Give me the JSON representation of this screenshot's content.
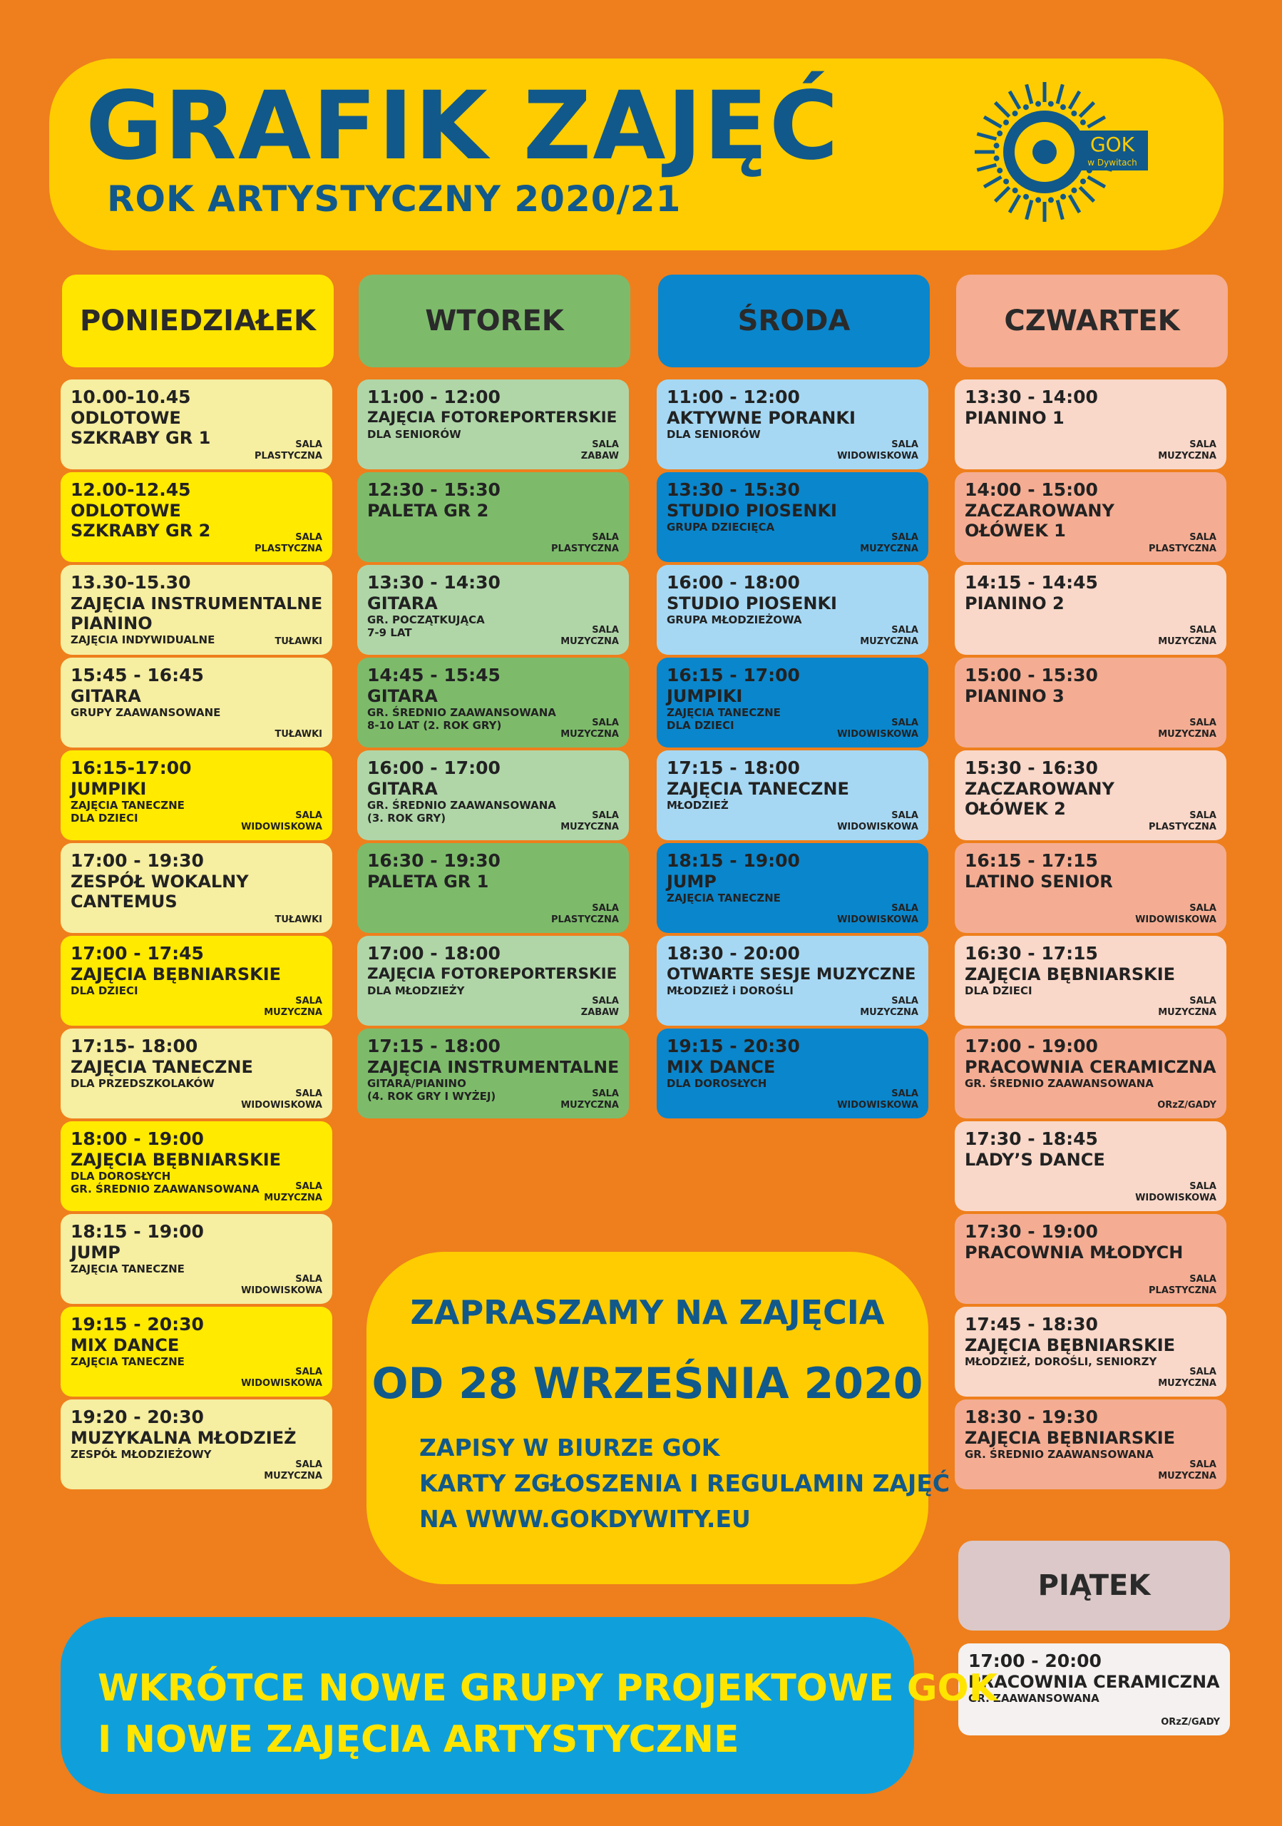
{
  "header": {
    "title": "GRAFIK ZAJĘĆ",
    "subtitle": "ROK ARTYSTYCZNY 2020/21"
  },
  "logo": {
    "name": "GOK",
    "place": "w Dywitach"
  },
  "colors": {
    "background": "#ee7f1c",
    "banner": "#fecc00",
    "title": "#11598a",
    "bottom_box": "#0fa0dc",
    "bottom_text": "#ffe500"
  },
  "days": [
    {
      "name": "PONIEDZIAŁEK",
      "header_color": "#ffe500",
      "light": "#f6eea0",
      "dark": "#ffea00",
      "cards": [
        {
          "shade": "light",
          "time": "10.00-10.45",
          "title": [
            "ODLOTOWE",
            "SZKRABY GR 1"
          ],
          "sub": [],
          "room": [
            "SALA",
            "PLASTYCZNA"
          ]
        },
        {
          "shade": "dark",
          "time": "12.00-12.45",
          "title": [
            "ODLOTOWE",
            "SZKRABY GR 2"
          ],
          "sub": [],
          "room": [
            "SALA",
            "PLASTYCZNA"
          ]
        },
        {
          "shade": "light",
          "time": "13.30-15.30",
          "title": [
            "ZAJĘCIA INSTRUMENTALNE",
            "PIANINO"
          ],
          "sub": [
            "ZAJĘCIA INDYWIDUALNE"
          ],
          "room": [
            "TUŁAWKI"
          ]
        },
        {
          "shade": "light",
          "time": "15:45 - 16:45",
          "title": [
            "GITARA"
          ],
          "sub": [
            "GRUPY ZAAWANSOWANE"
          ],
          "room": [
            "TUŁAWKI"
          ]
        },
        {
          "shade": "dark",
          "time": "16:15-17:00",
          "title": [
            "JUMPIKI"
          ],
          "sub": [
            "ZAJĘCIA TANECZNE",
            "DLA DZIECI"
          ],
          "room": [
            "SALA",
            "WIDOWISKOWA"
          ]
        },
        {
          "shade": "light",
          "time": "17:00 - 19:30",
          "title": [
            "ZESPÓŁ WOKALNY",
            "CANTEMUS"
          ],
          "sub": [],
          "room": [
            "TUŁAWKI"
          ]
        },
        {
          "shade": "dark",
          "time": "17:00 - 17:45",
          "title": [
            "ZAJĘCIA BĘBNIARSKIE"
          ],
          "sub": [
            "DLA DZIECI"
          ],
          "room": [
            "SALA",
            "MUZYCZNA"
          ]
        },
        {
          "shade": "light",
          "time": "17:15- 18:00",
          "title": [
            "ZAJĘCIA TANECZNE"
          ],
          "sub": [
            "DLA PRZEDSZKOLAKÓW"
          ],
          "room": [
            "SALA",
            "WIDOWISKOWA"
          ]
        },
        {
          "shade": "dark",
          "time": "18:00 - 19:00",
          "title": [
            "ZAJĘCIA BĘBNIARSKIE"
          ],
          "sub": [
            "DLA DOROSŁYCH",
            "GR. ŚREDNIO ZAAWANSOWANA"
          ],
          "room": [
            "SALA",
            "MUZYCZNA"
          ]
        },
        {
          "shade": "light",
          "time": "18:15 - 19:00",
          "title": [
            "JUMP"
          ],
          "sub": [
            "ZAJĘCIA TANECZNE"
          ],
          "room": [
            "SALA",
            "WIDOWISKOWA"
          ]
        },
        {
          "shade": "dark",
          "time": "19:15 - 20:30",
          "title": [
            "MIX DANCE"
          ],
          "sub": [
            "ZAJĘCIA TANECZNE"
          ],
          "room": [
            "SALA",
            "WIDOWISKOWA"
          ]
        },
        {
          "shade": "light",
          "time": "19:20 - 20:30",
          "title": [
            "MUZYKALNA MŁODZIEŻ"
          ],
          "sub": [
            "ZESPÓŁ MŁODZIEŻOWY"
          ],
          "room": [
            "SALA",
            "MUZYCZNA"
          ]
        }
      ]
    },
    {
      "name": "WTOREK",
      "header_color": "#7dbb6b",
      "light": "#b0d6a8",
      "dark": "#7dbb6b",
      "cards": [
        {
          "shade": "light",
          "time": "11:00 - 12:00",
          "title": [
            "ZAJĘCIA FOTOREPORTERSKIE"
          ],
          "sub": [
            "DLA SENIORÓW"
          ],
          "room": [
            "SALA",
            "ZABAW"
          ]
        },
        {
          "shade": "dark",
          "time": "12:30 - 15:30",
          "title": [
            "PALETA GR 2"
          ],
          "sub": [],
          "room": [
            "SALA",
            "PLASTYCZNA"
          ]
        },
        {
          "shade": "light",
          "time": "13:30 - 14:30",
          "title": [
            "GITARA"
          ],
          "sub": [
            "GR. POCZĄTKUJĄCA",
            "7-9 LAT"
          ],
          "room": [
            "SALA",
            "MUZYCZNA"
          ]
        },
        {
          "shade": "dark",
          "time": "14:45 - 15:45",
          "title": [
            "GITARA"
          ],
          "sub": [
            "GR. ŚREDNIO ZAAWANSOWANA",
            "8-10 LAT  (2. ROK GRY)"
          ],
          "room": [
            "SALA",
            "MUZYCZNA"
          ]
        },
        {
          "shade": "light",
          "time": "16:00 - 17:00",
          "title": [
            "GITARA"
          ],
          "sub": [
            "GR. ŚREDNIO ZAAWANSOWANA",
            "(3. ROK GRY)"
          ],
          "room": [
            "SALA",
            "MUZYCZNA"
          ]
        },
        {
          "shade": "dark",
          "time": "16:30 - 19:30",
          "title": [
            "PALETA GR 1"
          ],
          "sub": [],
          "room": [
            "SALA",
            "PLASTYCZNA"
          ]
        },
        {
          "shade": "light",
          "time": "17:00 - 18:00",
          "title": [
            "ZAJĘCIA FOTOREPORTERSKIE"
          ],
          "sub": [
            "DLA MŁODZIEŻY"
          ],
          "room": [
            "SALA",
            "ZABAW"
          ]
        },
        {
          "shade": "dark",
          "time": "17:15 - 18:00",
          "title": [
            "ZAJĘCIA INSTRUMENTALNE"
          ],
          "sub": [
            "GITARA/PIANINO",
            "(4. ROK GRY I WYŻEJ)"
          ],
          "room": [
            "SALA",
            "MUZYCZNA"
          ]
        }
      ]
    },
    {
      "name": "ŚRODA",
      "header_color": "#0a86cc",
      "light": "#a6d8f3",
      "dark": "#0a86cc",
      "cards": [
        {
          "shade": "light",
          "time": "11:00 - 12:00",
          "title": [
            "AKTYWNE PORANKI"
          ],
          "sub": [
            "DLA SENIORÓW"
          ],
          "room": [
            "SALA",
            "WIDOWISKOWA"
          ]
        },
        {
          "shade": "dark",
          "time": "13:30 - 15:30",
          "title": [
            "STUDIO PIOSENKI"
          ],
          "sub": [
            "GRUPA DZIECIĘCA"
          ],
          "room": [
            "SALA",
            "MUZYCZNA"
          ]
        },
        {
          "shade": "light",
          "time": "16:00 - 18:00",
          "title": [
            "STUDIO PIOSENKI"
          ],
          "sub": [
            "GRUPA MŁODZIEŻOWA"
          ],
          "room": [
            "SALA",
            "MUZYCZNA"
          ]
        },
        {
          "shade": "dark",
          "time": "16:15 - 17:00",
          "title": [
            "JUMPIKI"
          ],
          "sub": [
            "ZAJĘCIA TANECZNE",
            "DLA DZIECI"
          ],
          "room": [
            "SALA",
            "WIDOWISKOWA"
          ]
        },
        {
          "shade": "light",
          "time": "17:15 - 18:00",
          "title": [
            "ZAJĘCIA TANECZNE"
          ],
          "sub": [
            "MŁODZIEŻ"
          ],
          "room": [
            "SALA",
            "WIDOWISKOWA"
          ]
        },
        {
          "shade": "dark",
          "time": "18:15 - 19:00",
          "title": [
            "JUMP"
          ],
          "sub": [
            "ZAJĘCIA TANECZNE"
          ],
          "room": [
            "SALA",
            "WIDOWISKOWA"
          ]
        },
        {
          "shade": "light",
          "time": "18:30 - 20:00",
          "title": [
            "OTWARTE SESJE MUZYCZNE"
          ],
          "sub": [
            "MŁODZIEŻ i DOROŚLI"
          ],
          "room": [
            "SALA",
            "MUZYCZNA"
          ]
        },
        {
          "shade": "dark",
          "time": "19:15 - 20:30",
          "title": [
            "MIX DANCE"
          ],
          "sub": [
            "DLA DOROSŁYCH"
          ],
          "room": [
            "SALA",
            "WIDOWISKOWA"
          ]
        }
      ]
    },
    {
      "name": "CZWARTEK",
      "header_color": "#f5ad93",
      "light": "#f9d8c9",
      "dark": "#f4ad93",
      "cards": [
        {
          "shade": "light",
          "time": "13:30 - 14:00",
          "title": [
            "PIANINO 1"
          ],
          "sub": [],
          "room": [
            "SALA",
            "MUZYCZNA"
          ]
        },
        {
          "shade": "dark",
          "time": "14:00 - 15:00",
          "title": [
            "ZACZAROWANY",
            "OŁÓWEK 1"
          ],
          "sub": [],
          "room": [
            "SALA",
            "PLASTYCZNA"
          ]
        },
        {
          "shade": "light",
          "time": "14:15 - 14:45",
          "title": [
            "PIANINO 2"
          ],
          "sub": [],
          "room": [
            "SALA",
            "MUZYCZNA"
          ]
        },
        {
          "shade": "dark",
          "time": "15:00 - 15:30",
          "title": [
            "PIANINO 3"
          ],
          "sub": [],
          "room": [
            "SALA",
            "MUZYCZNA"
          ]
        },
        {
          "shade": "light",
          "time": "15:30 - 16:30",
          "title": [
            "ZACZAROWANY",
            "OŁÓWEK 2"
          ],
          "sub": [],
          "room": [
            "SALA",
            "PLASTYCZNA"
          ]
        },
        {
          "shade": "dark",
          "time": "16:15 - 17:15",
          "title": [
            "LATINO SENIOR"
          ],
          "sub": [],
          "room": [
            "SALA",
            "WIDOWISKOWA"
          ]
        },
        {
          "shade": "light",
          "time": "16:30 - 17:15",
          "title": [
            "ZAJĘCIA BĘBNIARSKIE"
          ],
          "sub": [
            "DLA DZIECI"
          ],
          "room": [
            "SALA",
            "MUZYCZNA"
          ]
        },
        {
          "shade": "dark",
          "time": "17:00 - 19:00",
          "title": [
            "PRACOWNIA CERAMICZNA"
          ],
          "sub": [
            "GR. ŚREDNIO ZAAWANSOWANA"
          ],
          "room": [
            "ORzZ/GADY"
          ]
        },
        {
          "shade": "light",
          "time": "17:30 - 18:45",
          "title": [
            "LADY’S DANCE"
          ],
          "sub": [],
          "room": [
            "SALA",
            "WIDOWISKOWA"
          ]
        },
        {
          "shade": "dark",
          "time": "17:30 - 19:00",
          "title": [
            "PRACOWNIA MŁODYCH"
          ],
          "sub": [],
          "room": [
            "SALA",
            "PLASTYCZNA"
          ]
        },
        {
          "shade": "light",
          "time": "17:45 - 18:30",
          "title": [
            "ZAJĘCIA BĘBNIARSKIE"
          ],
          "sub": [
            "MŁODZIEŻ, DOROŚLI, SENIORZY"
          ],
          "room": [
            "SALA",
            "MUZYCZNA"
          ]
        },
        {
          "shade": "dark",
          "time": "18:30 - 19:30",
          "title": [
            "ZAJĘCIA BĘBNIARSKIE"
          ],
          "sub": [
            "GR. ŚREDNIO ZAAWANSOWANA"
          ],
          "room": [
            "SALA",
            "MUZYCZNA"
          ]
        }
      ]
    }
  ],
  "friday": {
    "name": "PIĄTEK",
    "header_color": "#dcc8c8",
    "card": {
      "time": "17:00 - 20:00",
      "title": "PRACOWNIA CERAMICZNA",
      "sub": "GR. ZAAWANSOWANA",
      "room": "ORzZ/GADY"
    }
  },
  "invite": {
    "line1": "ZAPRASZAMY NA ZAJĘCIA",
    "line2": "OD 28 WRZEŚNIA 2020",
    "info": [
      "ZAPISY W BIURZE GOK",
      "KARTY ZGŁOSZENIA I REGULAMIN ZAJĘĆ",
      "NA WWW.GOKDYWITY.EU"
    ]
  },
  "announcement": [
    "WKRÓTCE NOWE GRUPY PROJEKTOWE GOK",
    "I NOWE ZAJĘCIA ARTYSTYCZNE"
  ]
}
